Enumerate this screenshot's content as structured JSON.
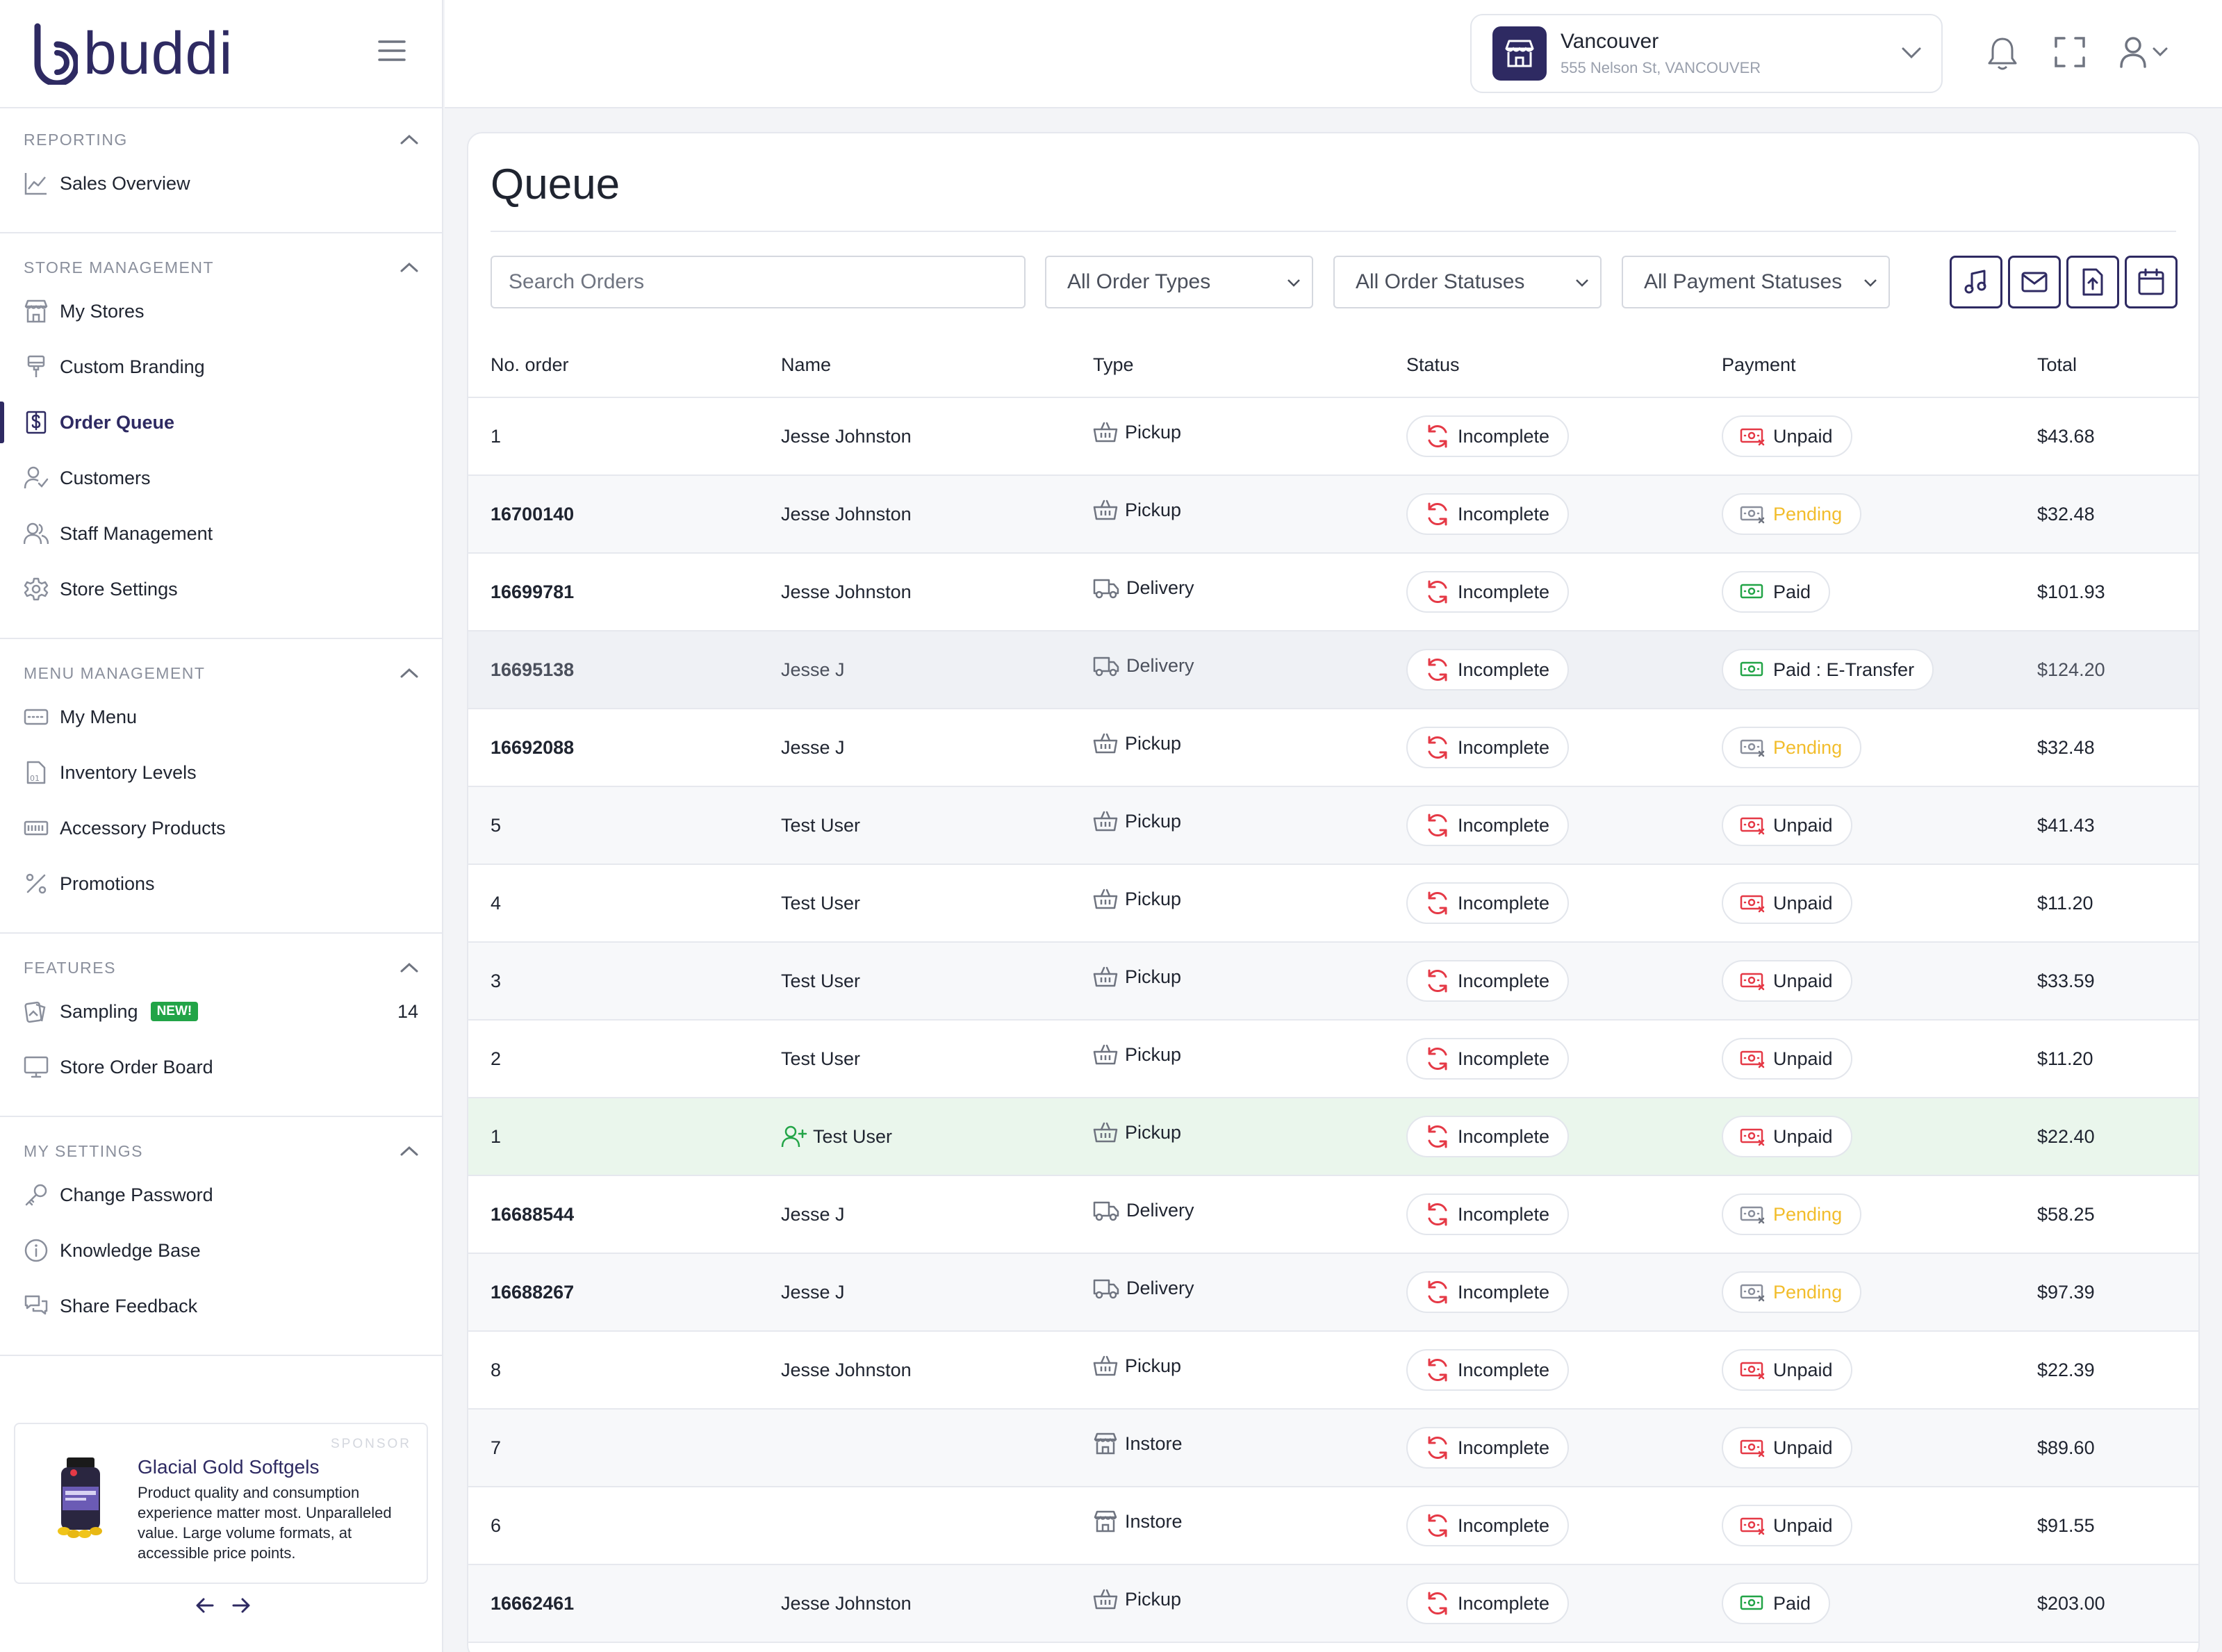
{
  "brand": {
    "name": "buddi"
  },
  "sidebar": {
    "sections": [
      {
        "title": "REPORTING",
        "items": [
          {
            "label": "Sales Overview",
            "icon": "chart-line-icon"
          }
        ]
      },
      {
        "title": "STORE MANAGEMENT",
        "items": [
          {
            "label": "My Stores",
            "icon": "store-icon"
          },
          {
            "label": "Custom Branding",
            "icon": "paint-brush-icon"
          },
          {
            "label": "Order Queue",
            "icon": "dollar-receipt-icon"
          },
          {
            "label": "Customers",
            "icon": "user-check-icon"
          },
          {
            "label": "Staff Management",
            "icon": "users-icon"
          },
          {
            "label": "Store Settings",
            "icon": "gear-icon"
          }
        ]
      },
      {
        "title": "MENU MANAGEMENT",
        "items": [
          {
            "label": "My Menu",
            "icon": "menu-card-icon"
          },
          {
            "label": "Inventory Levels",
            "icon": "inventory-icon"
          },
          {
            "label": "Accessory Products",
            "icon": "accessory-icon"
          },
          {
            "label": "Promotions",
            "icon": "percent-icon"
          }
        ]
      },
      {
        "title": "FEATURES",
        "items": [
          {
            "label": "Sampling",
            "icon": "sampling-icon",
            "badge": "NEW!",
            "count": "14"
          },
          {
            "label": "Store Order Board",
            "icon": "monitor-icon"
          }
        ]
      },
      {
        "title": "MY SETTINGS",
        "items": [
          {
            "label": "Change Password",
            "icon": "key-icon"
          },
          {
            "label": "Knowledge Base",
            "icon": "info-icon"
          },
          {
            "label": "Share Feedback",
            "icon": "chat-icon"
          }
        ]
      }
    ],
    "active": "Order Queue",
    "sponsor": {
      "tag": "SPONSOR",
      "title": "Glacial Gold Softgels",
      "body": "Product quality and consumption experience matter most. Unparalleled value. Large volume formats, at accessible price points."
    }
  },
  "header": {
    "store_name": "Vancouver",
    "store_address": "555 Nelson St, VANCOUVER"
  },
  "page": {
    "title": "Queue",
    "search_placeholder": "Search Orders",
    "filters": [
      "All Order Types",
      "All Order Statuses",
      "All Payment Statuses"
    ],
    "columns": [
      "No. order",
      "Name",
      "Type",
      "Status",
      "Payment",
      "Total"
    ]
  },
  "orders": [
    {
      "no": "1",
      "name": "Jesse Johnston",
      "type": "Pickup",
      "status": "Incomplete",
      "payment": "Unpaid",
      "total": "$43.68"
    },
    {
      "no": "16700140",
      "name": "Jesse Johnston",
      "type": "Pickup",
      "status": "Incomplete",
      "payment": "Pending",
      "total": "$32.48"
    },
    {
      "no": "16699781",
      "name": "Jesse Johnston",
      "type": "Delivery",
      "status": "Incomplete",
      "payment": "Paid",
      "total": "$101.93"
    },
    {
      "no": "16695138",
      "name": "Jesse J",
      "type": "Delivery",
      "status": "Incomplete",
      "payment": "Paid : E-Transfer",
      "total": "$124.20"
    },
    {
      "no": "16692088",
      "name": "Jesse J",
      "type": "Pickup",
      "status": "Incomplete",
      "payment": "Pending",
      "total": "$32.48"
    },
    {
      "no": "5",
      "name": "Test User",
      "type": "Pickup",
      "status": "Incomplete",
      "payment": "Unpaid",
      "total": "$41.43"
    },
    {
      "no": "4",
      "name": "Test User",
      "type": "Pickup",
      "status": "Incomplete",
      "payment": "Unpaid",
      "total": "$11.20"
    },
    {
      "no": "3",
      "name": "Test User",
      "type": "Pickup",
      "status": "Incomplete",
      "payment": "Unpaid",
      "total": "$33.59"
    },
    {
      "no": "2",
      "name": "Test User",
      "type": "Pickup",
      "status": "Incomplete",
      "payment": "Unpaid",
      "total": "$11.20"
    },
    {
      "no": "1",
      "name": "Test User",
      "type": "Pickup",
      "status": "Incomplete",
      "payment": "Unpaid",
      "total": "$22.40"
    },
    {
      "no": "16688544",
      "name": "Jesse J",
      "type": "Delivery",
      "status": "Incomplete",
      "payment": "Pending",
      "total": "$58.25"
    },
    {
      "no": "16688267",
      "name": "Jesse J",
      "type": "Delivery",
      "status": "Incomplete",
      "payment": "Pending",
      "total": "$97.39"
    },
    {
      "no": "8",
      "name": "Jesse Johnston",
      "type": "Pickup",
      "status": "Incomplete",
      "payment": "Unpaid",
      "total": "$22.39"
    },
    {
      "no": "7",
      "name": "",
      "type": "Instore",
      "status": "Incomplete",
      "payment": "Unpaid",
      "total": "$89.60"
    },
    {
      "no": "6",
      "name": "",
      "type": "Instore",
      "status": "Incomplete",
      "payment": "Unpaid",
      "total": "$91.55"
    },
    {
      "no": "16662461",
      "name": "Jesse Johnston",
      "type": "Pickup",
      "status": "Incomplete",
      "payment": "Paid",
      "total": "$203.00"
    }
  ],
  "colors": {
    "brand": "#2e2a62",
    "incomplete": "#e53946",
    "unpaid": "#e53946",
    "pending": "#f2bd2c",
    "paid": "#22a447",
    "new_badge": "#22a447",
    "new_customer_row": "#eaf6ec"
  }
}
